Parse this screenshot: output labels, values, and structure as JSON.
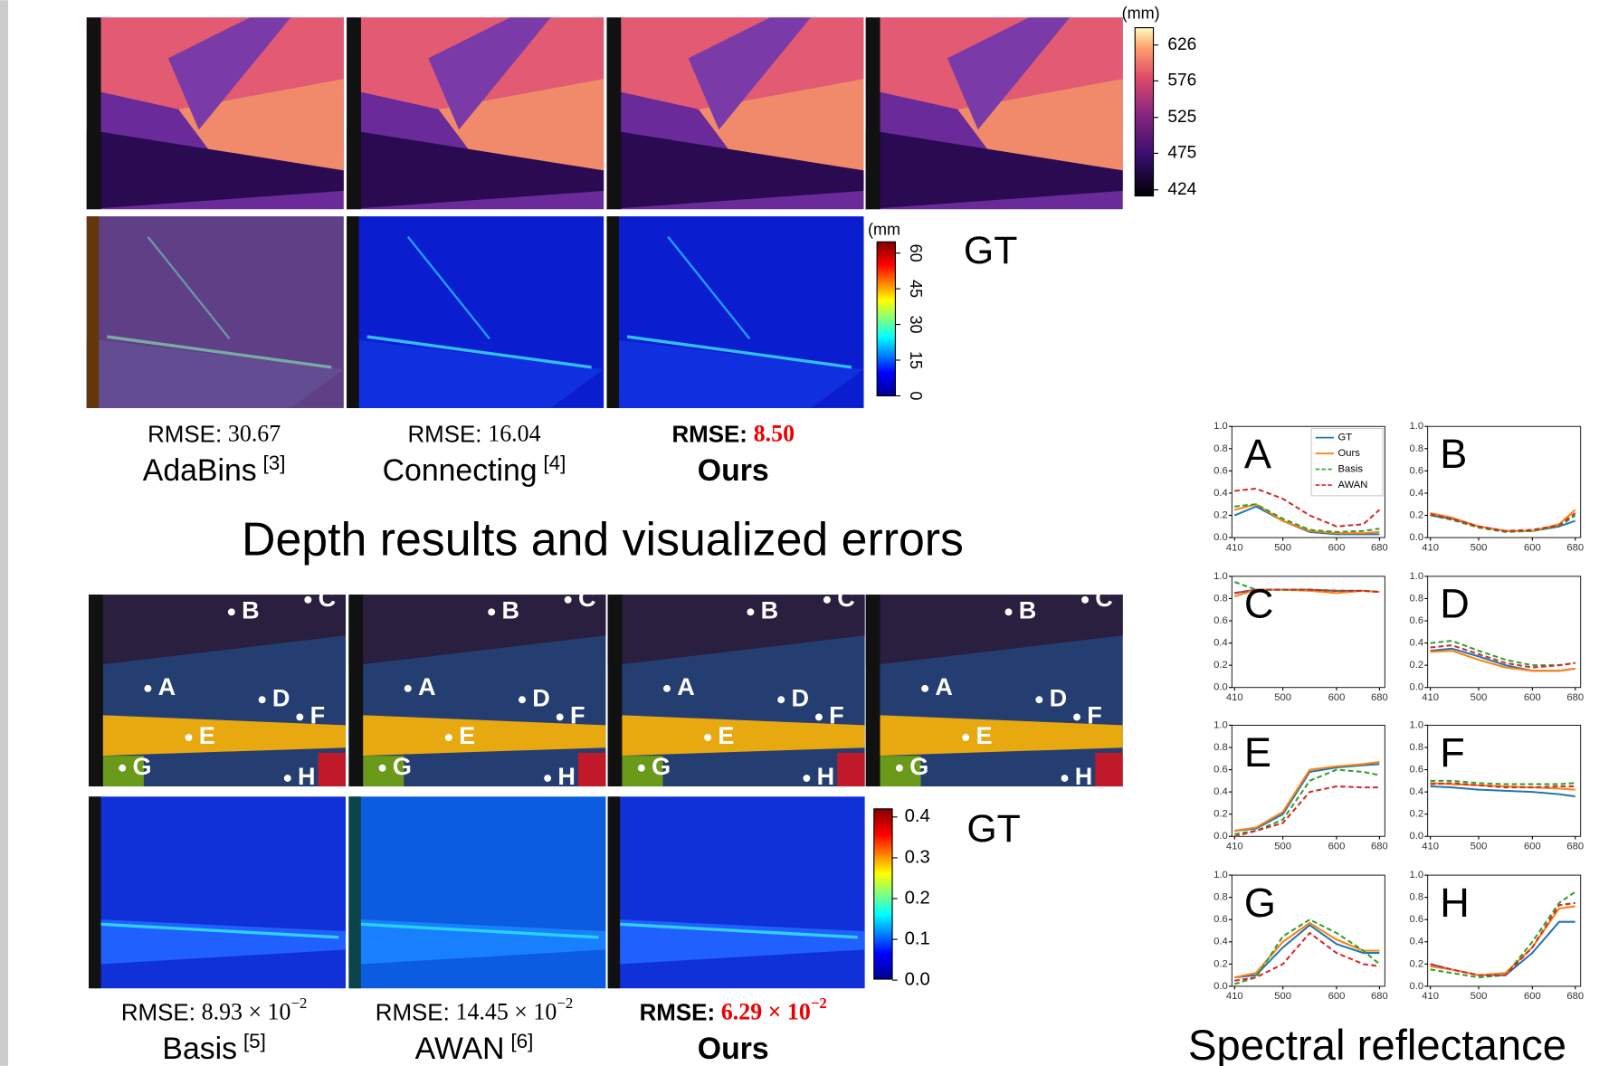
{
  "depth": {
    "title": "Depth results and visualized errors",
    "unit": "(mm)",
    "ticks": [
      626,
      576,
      525,
      475,
      424
    ],
    "error_unit": "(mm",
    "error_ticks": [
      60,
      45,
      30,
      15,
      0
    ],
    "gt_label": "GT",
    "methods": [
      {
        "prefix": "RMSE:",
        "value": "30.67",
        "name": "AdaBins",
        "ref": "[3]"
      },
      {
        "prefix": "RMSE:",
        "value": "16.04",
        "name": "Connecting",
        "ref": "[4]"
      },
      {
        "prefix": "RMSE:",
        "value": "8.50",
        "name": "Ours"
      }
    ]
  },
  "spectral": {
    "title": "Spectral reflectance",
    "gt_label": "GT",
    "points": [
      "A",
      "B",
      "C",
      "D",
      "E",
      "F",
      "G",
      "H"
    ],
    "error_ticks": [
      0.4,
      0.3,
      0.2,
      0.1,
      {
        "value": 0,
        "label": "0.0"
      }
    ],
    "methods": [
      {
        "prefix": "RMSE:",
        "value": "8.93 × 10",
        "exponent": "−2",
        "name": "Basis",
        "ref": "[5]"
      },
      {
        "prefix": "RMSE:",
        "value": "14.45 × 10",
        "exponent": "−2",
        "name": "AWAN",
        "ref": "[6]"
      },
      {
        "prefix": "RMSE:",
        "value": "6.29 × 10",
        "exponent": "−2",
        "name": "Ours"
      }
    ]
  },
  "chart_data": [
    {
      "type": "line",
      "title": "A",
      "legend": "upper right",
      "x": [
        410,
        450,
        500,
        550,
        600,
        650,
        680
      ],
      "xlim": [
        405,
        690
      ],
      "ylim": [
        0,
        1
      ],
      "xticks": [
        410,
        500,
        600,
        680
      ],
      "yticks": [
        {
          "value": 0,
          "label": "0.0"
        },
        0.2,
        0.4,
        0.6,
        0.8,
        {
          "value": 1,
          "label": "1.0"
        }
      ],
      "series": [
        {
          "name": "GT",
          "color": "#1f77b4",
          "values": [
            0.2,
            0.28,
            0.15,
            0.05,
            0.03,
            0.03,
            0.03
          ]
        },
        {
          "name": "Ours",
          "color": "#ff7f0e",
          "values": [
            0.25,
            0.3,
            0.15,
            0.06,
            0.04,
            0.04,
            0.05
          ]
        },
        {
          "name": "Basis",
          "color": "#2ca02c",
          "dash": true,
          "values": [
            0.28,
            0.3,
            0.17,
            0.07,
            0.05,
            0.06,
            0.08
          ]
        },
        {
          "name": "AWAN",
          "color": "#d62728",
          "dash": true,
          "values": [
            0.42,
            0.44,
            0.35,
            0.2,
            0.1,
            0.12,
            0.25
          ]
        }
      ]
    },
    {
      "type": "line",
      "title": "B",
      "x": [
        410,
        450,
        500,
        550,
        600,
        650,
        680
      ],
      "xlim": [
        405,
        690
      ],
      "ylim": [
        0,
        1
      ],
      "xticks": [
        410,
        500,
        600,
        680
      ],
      "yticks": [
        {
          "value": 0,
          "label": "0.0"
        },
        0.2,
        0.4,
        0.6,
        0.8,
        {
          "value": 1,
          "label": "1.0"
        }
      ],
      "series": [
        {
          "name": "GT",
          "color": "#1f77b4",
          "values": [
            0.2,
            0.17,
            0.1,
            0.06,
            0.06,
            0.1,
            0.15
          ]
        },
        {
          "name": "Ours",
          "color": "#ff7f0e",
          "values": [
            0.22,
            0.18,
            0.1,
            0.06,
            0.06,
            0.12,
            0.25
          ]
        },
        {
          "name": "Basis",
          "color": "#2ca02c",
          "dash": true,
          "values": [
            0.2,
            0.16,
            0.09,
            0.05,
            0.06,
            0.1,
            0.2
          ]
        },
        {
          "name": "AWAN",
          "color": "#d62728",
          "dash": true,
          "values": [
            0.21,
            0.17,
            0.1,
            0.06,
            0.07,
            0.11,
            0.22
          ]
        }
      ]
    },
    {
      "type": "line",
      "title": "C",
      "x": [
        410,
        450,
        500,
        550,
        600,
        650,
        680
      ],
      "xlim": [
        405,
        690
      ],
      "ylim": [
        0,
        1
      ],
      "xticks": [
        410,
        500,
        600,
        680
      ],
      "yticks": [
        {
          "value": 0,
          "label": "0.0"
        },
        0.2,
        0.4,
        0.6,
        0.8,
        {
          "value": 1,
          "label": "1.0"
        }
      ],
      "series": [
        {
          "name": "GT",
          "color": "#1f77b4",
          "values": [
            0.85,
            0.88,
            0.88,
            0.88,
            0.87,
            0.87,
            0.86
          ]
        },
        {
          "name": "Ours",
          "color": "#ff7f0e",
          "values": [
            0.82,
            0.88,
            0.88,
            0.87,
            0.85,
            0.87,
            0.86
          ]
        },
        {
          "name": "Basis",
          "color": "#2ca02c",
          "dash": true,
          "values": [
            0.95,
            0.88,
            0.88,
            0.88,
            0.87,
            0.87,
            0.86
          ]
        },
        {
          "name": "AWAN",
          "color": "#d62728",
          "dash": true,
          "values": [
            0.85,
            0.88,
            0.88,
            0.88,
            0.87,
            0.87,
            0.86
          ]
        }
      ]
    },
    {
      "type": "line",
      "title": "D",
      "x": [
        410,
        450,
        500,
        550,
        600,
        650,
        680
      ],
      "xlim": [
        405,
        690
      ],
      "ylim": [
        0,
        1
      ],
      "xticks": [
        410,
        500,
        600,
        680
      ],
      "yticks": [
        {
          "value": 0,
          "label": "0.0"
        },
        0.2,
        0.4,
        0.6,
        0.8,
        {
          "value": 1,
          "label": "1.0"
        }
      ],
      "series": [
        {
          "name": "GT",
          "color": "#1f77b4",
          "values": [
            0.33,
            0.35,
            0.28,
            0.2,
            0.15,
            0.15,
            0.17
          ]
        },
        {
          "name": "Ours",
          "color": "#ff7f0e",
          "values": [
            0.32,
            0.33,
            0.25,
            0.18,
            0.15,
            0.15,
            0.17
          ]
        },
        {
          "name": "Basis",
          "color": "#2ca02c",
          "dash": true,
          "values": [
            0.4,
            0.42,
            0.33,
            0.25,
            0.2,
            0.2,
            0.22
          ]
        },
        {
          "name": "AWAN",
          "color": "#d62728",
          "dash": true,
          "values": [
            0.36,
            0.38,
            0.3,
            0.22,
            0.18,
            0.2,
            0.22
          ]
        }
      ]
    },
    {
      "type": "line",
      "title": "E",
      "x": [
        410,
        450,
        500,
        550,
        600,
        650,
        680
      ],
      "xlim": [
        405,
        690
      ],
      "ylim": [
        0,
        1
      ],
      "xticks": [
        410,
        500,
        600,
        680
      ],
      "yticks": [
        {
          "value": 0,
          "label": "0.0"
        },
        0.2,
        0.4,
        0.6,
        0.8,
        {
          "value": 1,
          "label": "1.0"
        }
      ],
      "series": [
        {
          "name": "GT",
          "color": "#1f77b4",
          "values": [
            0.05,
            0.07,
            0.2,
            0.58,
            0.62,
            0.64,
            0.65
          ]
        },
        {
          "name": "Ours",
          "color": "#ff7f0e",
          "values": [
            0.05,
            0.08,
            0.22,
            0.6,
            0.63,
            0.65,
            0.67
          ]
        },
        {
          "name": "Basis",
          "color": "#2ca02c",
          "dash": true,
          "values": [
            0.02,
            0.05,
            0.15,
            0.5,
            0.6,
            0.58,
            0.55
          ]
        },
        {
          "name": "AWAN",
          "color": "#d62728",
          "dash": true,
          "values": [
            0,
            0.05,
            0.12,
            0.4,
            0.45,
            0.44,
            0.44
          ]
        }
      ]
    },
    {
      "type": "line",
      "title": "F",
      "x": [
        410,
        450,
        500,
        550,
        600,
        650,
        680
      ],
      "xlim": [
        405,
        690
      ],
      "ylim": [
        0,
        1
      ],
      "xticks": [
        410,
        500,
        600,
        680
      ],
      "yticks": [
        {
          "value": 0,
          "label": "0.0"
        },
        0.2,
        0.4,
        0.6,
        0.8,
        {
          "value": 1,
          "label": "1.0"
        }
      ],
      "series": [
        {
          "name": "GT",
          "color": "#1f77b4",
          "values": [
            0.45,
            0.44,
            0.42,
            0.41,
            0.4,
            0.38,
            0.36
          ]
        },
        {
          "name": "Ours",
          "color": "#ff7f0e",
          "values": [
            0.48,
            0.47,
            0.46,
            0.45,
            0.44,
            0.43,
            0.42
          ]
        },
        {
          "name": "Basis",
          "color": "#2ca02c",
          "dash": true,
          "values": [
            0.5,
            0.5,
            0.48,
            0.47,
            0.47,
            0.47,
            0.48
          ]
        },
        {
          "name": "AWAN",
          "color": "#d62728",
          "dash": true,
          "values": [
            0.47,
            0.48,
            0.46,
            0.44,
            0.44,
            0.45,
            0.45
          ]
        }
      ]
    },
    {
      "type": "line",
      "title": "G",
      "x": [
        410,
        450,
        500,
        550,
        600,
        650,
        680
      ],
      "xlim": [
        405,
        690
      ],
      "ylim": [
        0,
        1
      ],
      "xticks": [
        410,
        500,
        600,
        680
      ],
      "yticks": [
        {
          "value": 0,
          "label": "0.0"
        },
        0.2,
        0.4,
        0.6,
        0.8,
        {
          "value": 1,
          "label": "1.0"
        }
      ],
      "series": [
        {
          "name": "GT",
          "color": "#1f77b4",
          "values": [
            0.08,
            0.1,
            0.35,
            0.55,
            0.38,
            0.3,
            0.3
          ]
        },
        {
          "name": "Ours",
          "color": "#ff7f0e",
          "values": [
            0.08,
            0.12,
            0.4,
            0.57,
            0.42,
            0.32,
            0.32
          ]
        },
        {
          "name": "Basis",
          "color": "#2ca02c",
          "dash": true,
          "values": [
            0.02,
            0.08,
            0.45,
            0.6,
            0.48,
            0.32,
            0.2
          ]
        },
        {
          "name": "AWAN",
          "color": "#d62728",
          "dash": true,
          "values": [
            0.05,
            0.08,
            0.2,
            0.48,
            0.3,
            0.2,
            0.18
          ]
        }
      ]
    },
    {
      "type": "line",
      "title": "H",
      "x": [
        410,
        450,
        500,
        550,
        600,
        650,
        680
      ],
      "xlim": [
        405,
        690
      ],
      "ylim": [
        0,
        1
      ],
      "xticks": [
        410,
        500,
        600,
        680
      ],
      "yticks": [
        {
          "value": 0,
          "label": "0.0"
        },
        0.2,
        0.4,
        0.6,
        0.8,
        {
          "value": 1,
          "label": "1.0"
        }
      ],
      "series": [
        {
          "name": "GT",
          "color": "#1f77b4",
          "values": [
            0.2,
            0.15,
            0.1,
            0.1,
            0.3,
            0.58,
            0.58
          ]
        },
        {
          "name": "Ours",
          "color": "#ff7f0e",
          "values": [
            0.18,
            0.15,
            0.1,
            0.12,
            0.35,
            0.7,
            0.72
          ]
        },
        {
          "name": "Basis",
          "color": "#2ca02c",
          "dash": true,
          "values": [
            0.15,
            0.12,
            0.08,
            0.1,
            0.4,
            0.75,
            0.85
          ]
        },
        {
          "name": "AWAN",
          "color": "#d62728",
          "dash": true,
          "values": [
            0.2,
            0.15,
            0.1,
            0.1,
            0.35,
            0.73,
            0.75
          ]
        }
      ]
    }
  ]
}
